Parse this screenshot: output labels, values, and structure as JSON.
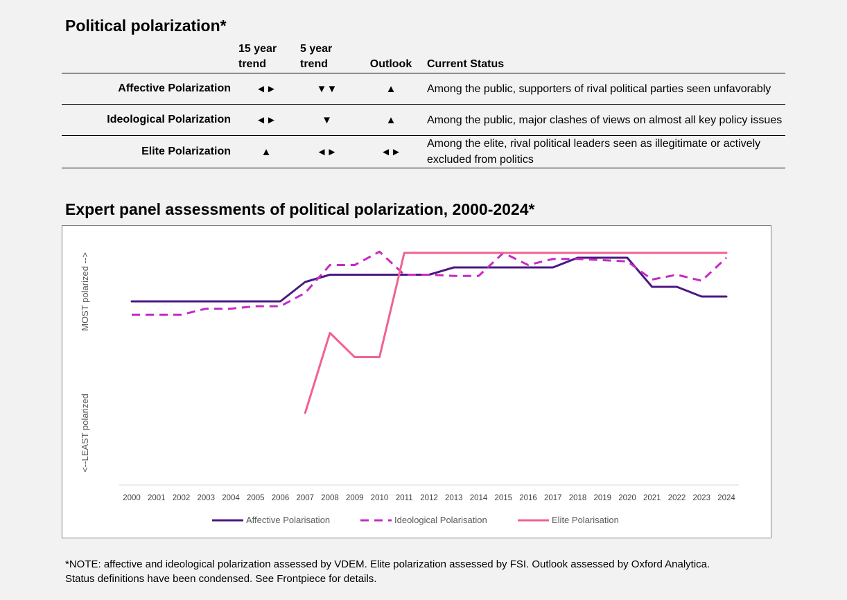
{
  "header": {
    "title": "Political polarization*"
  },
  "summary_table": {
    "columns": {
      "trend15_line1": "15 year",
      "trend15_line2": "trend",
      "trend5_line1": "5 year",
      "trend5_line2": "trend",
      "outlook": "Outlook",
      "status": "Current Status"
    },
    "rows": [
      {
        "label": "Affective Polarization",
        "trend15": "◄►",
        "trend5": "▼▼",
        "outlook": "▲",
        "status": "Among the public, supporters of rival political parties seen unfavorably"
      },
      {
        "label": "Ideological Polarization",
        "trend15": "◄►",
        "trend5": "▼",
        "outlook": "▲",
        "status": "Among the public, major clashes of views on almost all key policy issues"
      },
      {
        "label": "Elite Polarization",
        "trend15": "▲",
        "trend5": "◄►",
        "outlook": "◄►",
        "status": "Among the elite, rival political leaders seen as illegitimate or actively excluded from politics"
      }
    ]
  },
  "chart_title": "Expert panel assessments of political polarization, 2000-2024*",
  "chart_data": {
    "type": "line",
    "title": "Expert panel assessments of political polarization, 2000-2024*",
    "ylabel_top": "MOST polarized -->",
    "ylabel_bottom": "<--LEAST polarized",
    "x": [
      "2000",
      "2001",
      "2002",
      "2003",
      "2004",
      "2005",
      "2006",
      "2007",
      "2008",
      "2009",
      "2010",
      "2011",
      "2012",
      "2013",
      "2014",
      "2015",
      "2016",
      "2017",
      "2018",
      "2019",
      "2020",
      "2021",
      "2022",
      "2023",
      "2024"
    ],
    "ylim": [
      0,
      100
    ],
    "grid": false,
    "legend_position": "bottom",
    "series": [
      {
        "name": "Affective Polarisation",
        "color": "#4b1882",
        "style": "solid",
        "values": [
          76,
          76,
          76,
          76,
          76,
          76,
          76,
          84,
          87,
          87,
          87,
          87,
          87,
          90,
          90,
          90,
          90,
          90,
          94,
          94,
          94,
          82,
          82,
          78,
          78
        ]
      },
      {
        "name": "Ideological Polarisation",
        "color": "#c62bc4",
        "style": "dashed",
        "values": [
          70.5,
          70.5,
          70.5,
          73,
          73,
          74,
          74,
          79.5,
          91,
          91,
          96.5,
          87,
          87,
          86.5,
          86.5,
          96,
          91,
          93.5,
          93.5,
          93,
          92.5,
          85,
          87,
          84.5,
          94
        ]
      },
      {
        "name": "Elite Polarisation",
        "color": "#f06292",
        "style": "solid",
        "values": [
          null,
          null,
          null,
          null,
          null,
          null,
          null,
          30,
          63,
          53,
          53,
          96,
          96,
          96,
          96,
          96,
          96,
          96,
          96,
          96,
          96,
          96,
          96,
          96,
          96
        ]
      }
    ]
  },
  "footnote": {
    "line1": "*NOTE: affective and ideological polarization assessed by VDEM. Elite polarization assessed by FSI. Outlook assessed by Oxford Analytica.",
    "line2": "Status definitions have been condensed. See Frontpiece for details."
  }
}
